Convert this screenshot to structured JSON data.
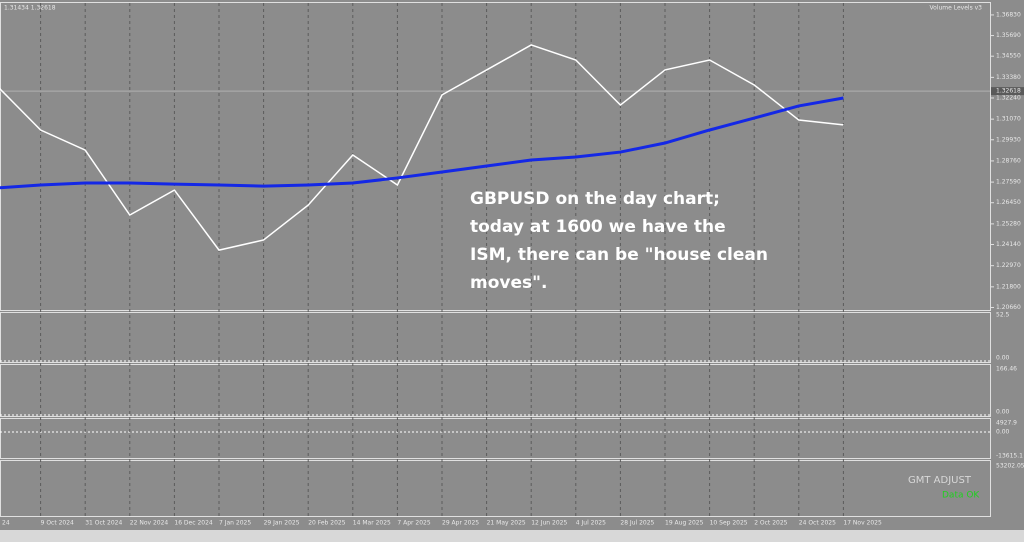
{
  "chart_data": {
    "type": "line",
    "header": "1.31434 1.32618",
    "indicator_label": "Volume Levels v3",
    "annotation": [
      "GBPUSD on the day chart;",
      "today at 1600 we have the",
      "ISM, there can be \"house clean",
      "moves\"."
    ],
    "categories": [
      "24",
      "9 Oct 2024",
      "31 Oct 2024",
      "22 Nov 2024",
      "16 Dec 2024",
      "7 Jan 2025",
      "29 Jan 2025",
      "20 Feb 2025",
      "14 Mar 2025",
      "7 Apr 2025",
      "29 Apr 2025",
      "21 May 2025",
      "12 Jun 2025",
      "4 Jul 2025",
      "28 Jul 2025",
      "19 Aug 2025",
      "10 Sep 2025",
      "2 Oct 2025",
      "24 Oct 2025",
      "17 Nov 2025"
    ],
    "series": [
      {
        "color": "#ffffff",
        "values": [
          1.3296,
          1.3047,
          1.2936,
          1.2577,
          1.2715,
          1.2383,
          1.2439,
          1.2632,
          1.2909,
          1.2743,
          1.3241,
          1.3379,
          1.3517,
          1.3434,
          1.3185,
          1.3379,
          1.3434,
          1.3296,
          1.3102,
          1.3075
        ]
      },
      {
        "color": "#1428e6",
        "values": [
          1.2726,
          1.2743,
          1.2754,
          1.2754,
          1.2748,
          1.2743,
          1.2737,
          1.2743,
          1.2754,
          1.2782,
          1.2815,
          1.2848,
          1.2881,
          1.2898,
          1.2925,
          1.2975,
          1.3047,
          1.3113,
          1.318,
          1.3224
        ]
      }
    ],
    "ylim": [
      1.2052,
      1.3749
    ],
    "yticks": [
      {
        "value": 1.3683,
        "label": "1.36830"
      },
      {
        "value": 1.3569,
        "label": "1.35690"
      },
      {
        "value": 1.3455,
        "label": "1.34550"
      },
      {
        "value": 1.3338,
        "label": "1.33380"
      },
      {
        "value": 1.3224,
        "label": "1.32240"
      },
      {
        "value": 1.3107,
        "label": "1.31070"
      },
      {
        "value": 1.2993,
        "label": "1.29930"
      },
      {
        "value": 1.2876,
        "label": "1.28760"
      },
      {
        "value": 1.2759,
        "label": "1.27590"
      },
      {
        "value": 1.2645,
        "label": "1.26450"
      },
      {
        "value": 1.2528,
        "label": "1.25280"
      },
      {
        "value": 1.2414,
        "label": "1.24140"
      },
      {
        "value": 1.2297,
        "label": "1.22970"
      },
      {
        "value": 1.218,
        "label": "1.21800"
      },
      {
        "value": 1.2066,
        "label": "1.20660"
      }
    ],
    "last_price": {
      "value": 1.32618,
      "label": "1.32618"
    },
    "grid": true
  },
  "panels": [
    {
      "labels": [
        "52.5",
        "0.00"
      ]
    },
    {
      "labels": [
        "166.46",
        "0.00"
      ]
    },
    {
      "labels": [
        "4927.9",
        "0.00",
        "-13615.1"
      ]
    },
    {
      "labels": [
        "53202.05"
      ]
    }
  ],
  "status": [
    "GMT ADJUST",
    "Data OK"
  ]
}
